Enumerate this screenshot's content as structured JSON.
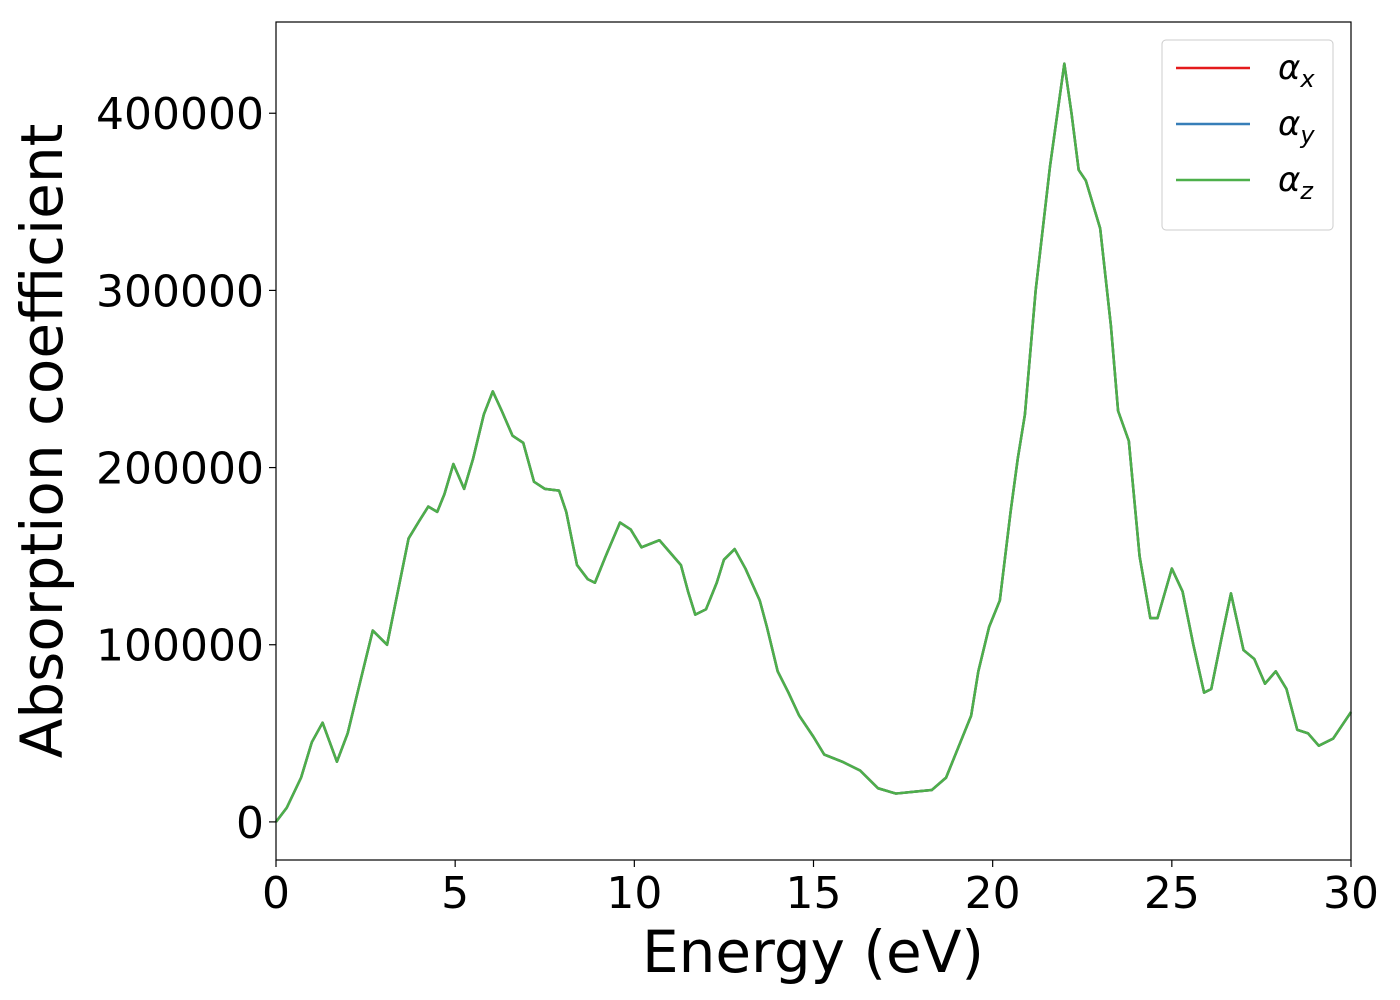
{
  "chart_data": {
    "type": "line",
    "xlabel": "Energy (eV)",
    "ylabel": "Absorption coefficient",
    "x": [
      0,
      0.3,
      0.7,
      1.0,
      1.3,
      1.5,
      1.7,
      2.0,
      2.3,
      2.7,
      3.0,
      3.1,
      3.3,
      3.7,
      4.0,
      4.25,
      4.5,
      4.7,
      4.95,
      5.25,
      5.5,
      5.8,
      6.05,
      6.3,
      6.6,
      6.9,
      7.2,
      7.5,
      7.9,
      8.1,
      8.4,
      8.7,
      8.9,
      9.2,
      9.6,
      9.9,
      10.2,
      10.7,
      11.0,
      11.3,
      11.5,
      11.7,
      12.0,
      12.3,
      12.5,
      12.8,
      13.1,
      13.5,
      13.7,
      14.0,
      14.3,
      14.6,
      15.0,
      15.3,
      15.8,
      16.3,
      16.8,
      17.3,
      17.8,
      18.3,
      18.7,
      19.1,
      19.4,
      19.6,
      19.9,
      20.2,
      20.5,
      20.7,
      20.9,
      21.2,
      21.6,
      22.0,
      22.2,
      22.4,
      22.6,
      23.0,
      23.3,
      23.5,
      23.8,
      24.1,
      24.4,
      24.6,
      25.0,
      25.3,
      25.6,
      25.9,
      26.1,
      26.4,
      26.65,
      27.0,
      27.3,
      27.6,
      27.9,
      28.2,
      28.5,
      28.8,
      29.1,
      29.5,
      30.0
    ],
    "series": [
      {
        "name": "αx",
        "color": "#e41a1c",
        "values": [
          0,
          8000,
          25000,
          45000,
          56000,
          45000,
          34000,
          50000,
          75000,
          108000,
          102000,
          100000,
          120000,
          160000,
          170000,
          178000,
          175000,
          185000,
          202000,
          188000,
          205000,
          230000,
          243000,
          232000,
          218000,
          214000,
          192000,
          188000,
          187000,
          175000,
          145000,
          137000,
          135000,
          150000,
          169000,
          165000,
          155000,
          159000,
          152000,
          145000,
          130000,
          117000,
          120000,
          135000,
          148000,
          154000,
          143000,
          125000,
          110000,
          85000,
          73000,
          60000,
          48000,
          38000,
          34000,
          29000,
          19000,
          16000,
          17000,
          18000,
          25000,
          45000,
          60000,
          85000,
          110000,
          125000,
          175000,
          205000,
          230000,
          300000,
          370000,
          428000,
          400000,
          368000,
          362000,
          335000,
          280000,
          232000,
          215000,
          150000,
          115000,
          115000,
          143000,
          130000,
          100000,
          73000,
          75000,
          105000,
          129000,
          97000,
          92000,
          78000,
          85000,
          75000,
          52000,
          50000,
          43000,
          47000,
          62000
        ]
      },
      {
        "name": "αy",
        "color": "#377eb8",
        "values": [
          0,
          8000,
          25000,
          45000,
          56000,
          45000,
          34000,
          50000,
          75000,
          108000,
          102000,
          100000,
          120000,
          160000,
          170000,
          178000,
          175000,
          185000,
          202000,
          188000,
          205000,
          230000,
          243000,
          232000,
          218000,
          214000,
          192000,
          188000,
          187000,
          175000,
          145000,
          137000,
          135000,
          150000,
          169000,
          165000,
          155000,
          159000,
          152000,
          145000,
          130000,
          117000,
          120000,
          135000,
          148000,
          154000,
          143000,
          125000,
          110000,
          85000,
          73000,
          60000,
          48000,
          38000,
          34000,
          29000,
          19000,
          16000,
          17000,
          18000,
          25000,
          45000,
          60000,
          85000,
          110000,
          125000,
          175000,
          205000,
          230000,
          300000,
          370000,
          428000,
          400000,
          368000,
          362000,
          335000,
          280000,
          232000,
          215000,
          150000,
          115000,
          115000,
          143000,
          130000,
          100000,
          73000,
          75000,
          105000,
          129000,
          97000,
          92000,
          78000,
          85000,
          75000,
          52000,
          50000,
          43000,
          47000,
          62000
        ]
      },
      {
        "name": "αz",
        "color": "#4daf4a",
        "values": [
          0,
          8000,
          25000,
          45000,
          56000,
          45000,
          34000,
          50000,
          75000,
          108000,
          102000,
          100000,
          120000,
          160000,
          170000,
          178000,
          175000,
          185000,
          202000,
          188000,
          205000,
          230000,
          243000,
          232000,
          218000,
          214000,
          192000,
          188000,
          187000,
          175000,
          145000,
          137000,
          135000,
          150000,
          169000,
          165000,
          155000,
          159000,
          152000,
          145000,
          130000,
          117000,
          120000,
          135000,
          148000,
          154000,
          143000,
          125000,
          110000,
          85000,
          73000,
          60000,
          48000,
          38000,
          34000,
          29000,
          19000,
          16000,
          17000,
          18000,
          25000,
          45000,
          60000,
          85000,
          110000,
          125000,
          175000,
          205000,
          230000,
          300000,
          370000,
          428000,
          400000,
          368000,
          362000,
          335000,
          280000,
          232000,
          215000,
          150000,
          115000,
          115000,
          143000,
          130000,
          100000,
          73000,
          75000,
          105000,
          129000,
          97000,
          92000,
          78000,
          85000,
          75000,
          52000,
          50000,
          43000,
          47000,
          62000
        ]
      }
    ],
    "xlim": [
      0,
      30
    ],
    "xticks": [
      0,
      5,
      10,
      15,
      20,
      25,
      30
    ],
    "ylim": [
      -21500,
      451500
    ],
    "yticks": [
      0,
      100000,
      200000,
      300000,
      400000
    ],
    "legend": "upper right",
    "grid": false
  }
}
